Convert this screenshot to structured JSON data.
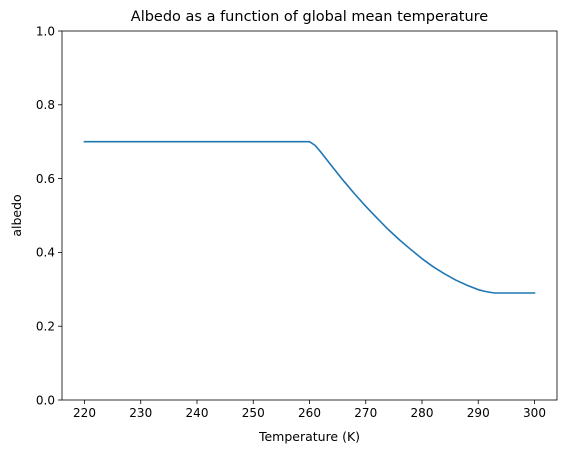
{
  "chart_data": {
    "type": "line",
    "title": "Albedo as a function of global mean temperature",
    "xlabel": "Temperature (K)",
    "ylabel": "albedo",
    "xlim": [
      216,
      304
    ],
    "ylim": [
      0.0,
      1.0
    ],
    "x_ticks": [
      220,
      230,
      240,
      250,
      260,
      270,
      280,
      290,
      300
    ],
    "x_tick_labels": [
      "220",
      "230",
      "240",
      "250",
      "260",
      "270",
      "280",
      "290",
      "300"
    ],
    "y_ticks": [
      0.0,
      0.2,
      0.4,
      0.6,
      0.8,
      1.0
    ],
    "y_tick_labels": [
      "0.0",
      "0.2",
      "0.4",
      "0.6",
      "0.8",
      "1.0"
    ],
    "grid": false,
    "legend": false,
    "series": [
      {
        "color": "#1f77b4",
        "x": [
          220,
          230,
          240,
          250,
          258,
          259,
          260,
          261,
          262,
          264,
          266,
          268,
          270,
          272,
          274,
          276,
          278,
          280,
          282,
          284,
          286,
          288,
          290,
          291,
          292,
          293,
          294,
          296,
          298,
          300
        ],
        "y": [
          0.7,
          0.7,
          0.7,
          0.7,
          0.7,
          0.7,
          0.7,
          0.69,
          0.672,
          0.633,
          0.595,
          0.559,
          0.525,
          0.493,
          0.462,
          0.434,
          0.408,
          0.383,
          0.361,
          0.342,
          0.325,
          0.311,
          0.299,
          0.295,
          0.292,
          0.29,
          0.29,
          0.29,
          0.29,
          0.29
        ]
      }
    ]
  }
}
